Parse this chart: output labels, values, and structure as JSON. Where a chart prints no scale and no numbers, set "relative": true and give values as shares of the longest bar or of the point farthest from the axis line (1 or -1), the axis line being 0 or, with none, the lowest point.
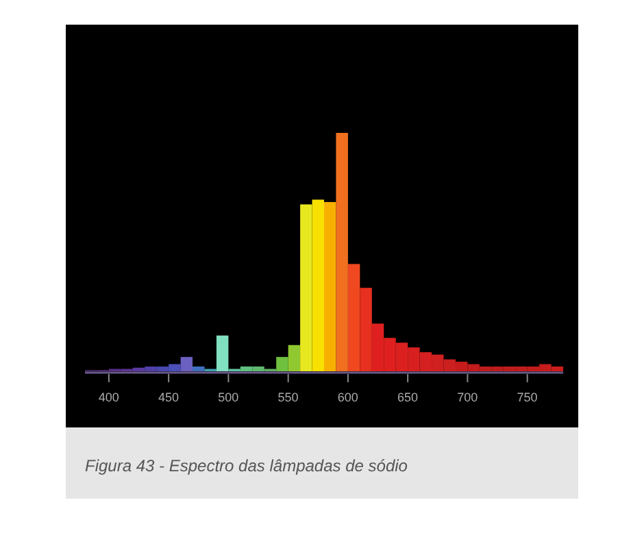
{
  "chart_data": {
    "type": "bar",
    "relative": true,
    "x": [
      385,
      395,
      405,
      415,
      425,
      435,
      445,
      455,
      465,
      475,
      485,
      495,
      505,
      515,
      525,
      535,
      545,
      555,
      565,
      575,
      585,
      595,
      605,
      615,
      625,
      635,
      645,
      655,
      665,
      675,
      685,
      695,
      705,
      715,
      725,
      735,
      745,
      755,
      765,
      775
    ],
    "values": [
      0.005,
      0.005,
      0.01,
      0.01,
      0.015,
      0.02,
      0.02,
      0.03,
      0.06,
      0.02,
      0.01,
      0.15,
      0.01,
      0.02,
      0.02,
      0.01,
      0.06,
      0.11,
      0.7,
      0.72,
      0.71,
      1,
      0.45,
      0.35,
      0.2,
      0.14,
      0.12,
      0.1,
      0.08,
      0.07,
      0.05,
      0.04,
      0.03,
      0.02,
      0.02,
      0.02,
      0.02,
      0.02,
      0.03,
      0.02
    ],
    "colors": [
      "#4a2a6a",
      "#522c78",
      "#5a3088",
      "#5e3494",
      "#5a3aa0",
      "#5040a8",
      "#4848b0",
      "#4a50b8",
      "#6a60c0",
      "#4070c0",
      "#40a0b0",
      "#80e0c0",
      "#60c0a0",
      "#60c080",
      "#60b870",
      "#60b060",
      "#70c040",
      "#90c830",
      "#e8e820",
      "#f8e000",
      "#f8b000",
      "#f07020",
      "#f04820",
      "#e83020",
      "#e02020",
      "#e02020",
      "#dc2020",
      "#d82020",
      "#d42020",
      "#d02020",
      "#cc2020",
      "#c81c1c",
      "#c41c1c",
      "#c01c1c",
      "#bc1c1c",
      "#bc1c1c",
      "#c01c1c",
      "#c41c1c",
      "#c81c1c",
      "#cc1c1c"
    ],
    "xlim": [
      380,
      780
    ],
    "xticks": [
      400,
      450,
      500,
      550,
      600,
      650,
      700,
      750
    ],
    "annotations": [
      "Figura 43 - Espectro das lâmpadas de sódio"
    ]
  }
}
